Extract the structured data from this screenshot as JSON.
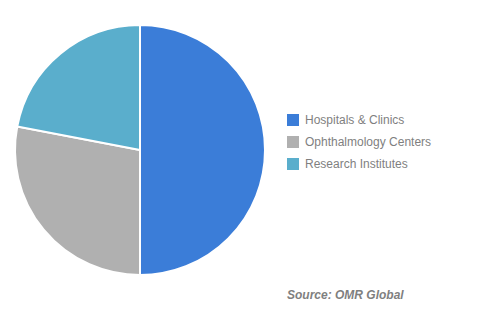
{
  "chart_data": {
    "type": "pie",
    "categories": [
      "Hospitals & Clinics",
      "Ophthalmology Centers",
      "Research Institutes"
    ],
    "values": [
      50,
      28,
      22
    ],
    "colors": [
      "#3B7DD8",
      "#B0B0B0",
      "#5AAECC"
    ],
    "legend": "right",
    "annotations": [
      "Source: OMR Global"
    ]
  }
}
